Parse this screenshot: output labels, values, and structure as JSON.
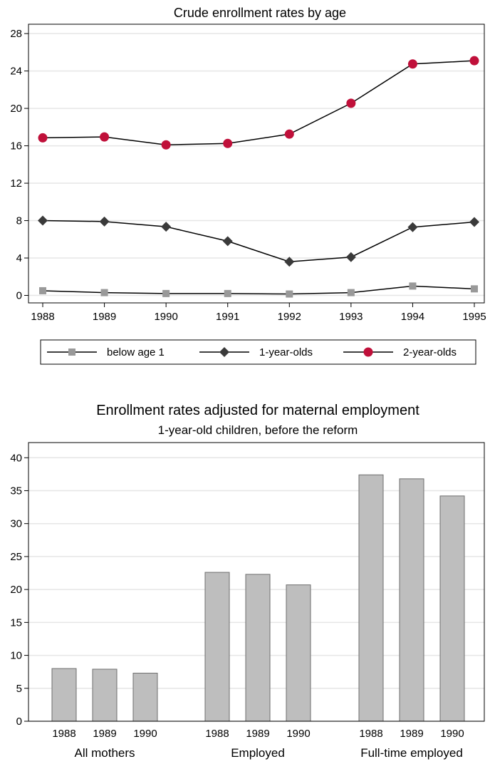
{
  "chart_data": [
    {
      "type": "line",
      "title": "Crude enrollment rates by age",
      "x": [
        1988,
        1989,
        1990,
        1991,
        1992,
        1993,
        1994,
        1995
      ],
      "x_ticks": [
        "1988",
        "1989",
        "1990",
        "1991",
        "1992",
        "1993",
        "1994",
        "1995"
      ],
      "y_ticks": [
        "0",
        "4",
        "8",
        "12",
        "16",
        "20",
        "24",
        "28"
      ],
      "ylim": [
        -0.8,
        29
      ],
      "grid": true,
      "legend_position": "bottom",
      "series": [
        {
          "name": "below age 1",
          "marker": "square",
          "color": "#999999",
          "values": [
            0.5,
            0.3,
            0.2,
            0.2,
            0.15,
            0.3,
            1.0,
            0.7
          ]
        },
        {
          "name": "1-year-olds",
          "marker": "diamond",
          "color": "#3a3a3a",
          "values": [
            8.0,
            7.9,
            7.35,
            5.8,
            3.6,
            4.1,
            7.3,
            7.85
          ]
        },
        {
          "name": "2-year-olds",
          "marker": "circle",
          "color": "#c0103a",
          "values": [
            16.85,
            16.95,
            16.1,
            16.25,
            17.25,
            20.55,
            24.75,
            25.1
          ]
        }
      ]
    },
    {
      "type": "bar",
      "title": "Enrollment rates adjusted for maternal employment",
      "subtitle": "1-year-old children, before the reform",
      "groups": [
        "All mothers",
        "Employed",
        "Full-time employed"
      ],
      "categories": [
        "1988",
        "1989",
        "1990"
      ],
      "values": [
        [
          8.0,
          7.9,
          7.3
        ],
        [
          22.6,
          22.3,
          20.7
        ],
        [
          37.4,
          36.8,
          34.2
        ]
      ],
      "y_ticks": [
        "0",
        "5",
        "10",
        "15",
        "20",
        "25",
        "30",
        "35",
        "40"
      ],
      "ylim": [
        0,
        42.3
      ],
      "grid": true,
      "bar_color": "#bebebe"
    }
  ]
}
